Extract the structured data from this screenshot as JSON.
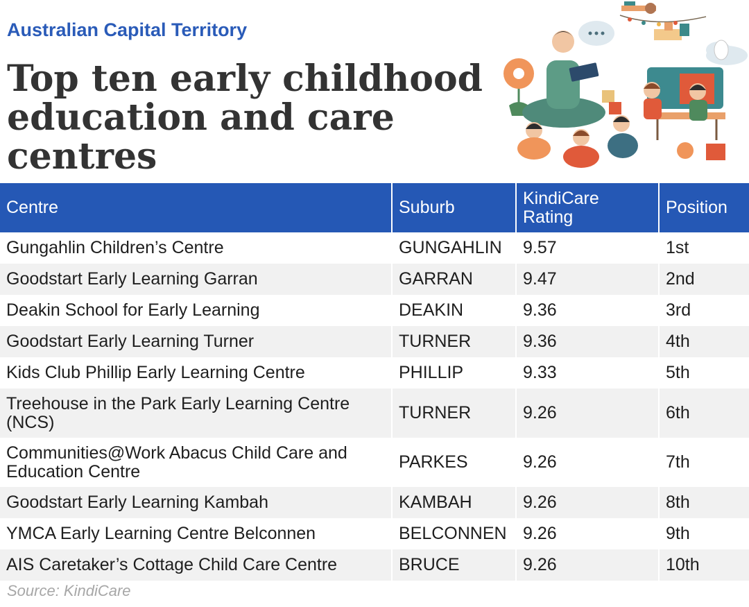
{
  "header": {
    "region": "Australian Capital Territory",
    "title": "Top ten early childhood education and care centres"
  },
  "colors": {
    "accent": "#2a5bb8",
    "header_bg": "#2558b5",
    "stripe": "#f1f1f1"
  },
  "chart_data": {
    "type": "table",
    "columns": [
      "Centre",
      "Suburb",
      "KindiCare Rating",
      "Position"
    ],
    "rows": [
      [
        "Gungahlin Children’s Centre",
        "GUNGAHLIN",
        "9.57",
        "1st"
      ],
      [
        "Goodstart Early Learning Garran",
        "GARRAN",
        "9.47",
        "2nd"
      ],
      [
        "Deakin School for Early Learning",
        "DEAKIN",
        "9.36",
        "3rd"
      ],
      [
        "Goodstart Early Learning Turner",
        "TURNER",
        "9.36",
        "4th"
      ],
      [
        "Kids Club Phillip Early Learning Centre",
        "PHILLIP",
        "9.33",
        "5th"
      ],
      [
        "Treehouse in the Park Early Learning Centre (NCS)",
        "TURNER",
        "9.26",
        "6th"
      ],
      [
        "Communities@Work Abacus Child Care and Education Centre",
        "PARKES",
        "9.26",
        "7th"
      ],
      [
        "Goodstart Early Learning Kambah",
        "KAMBAH",
        "9.26",
        "8th"
      ],
      [
        "YMCA Early Learning Centre Belconnen",
        "BELCONNEN",
        "9.26",
        "9th"
      ],
      [
        "AIS Caretaker’s Cottage Child Care Centre",
        "BRUCE",
        "9.26",
        "10th"
      ]
    ],
    "ratings": [
      9.57,
      9.47,
      9.36,
      9.36,
      9.33,
      9.26,
      9.26,
      9.26,
      9.26,
      9.26
    ]
  },
  "source": "Source: KindiCare"
}
